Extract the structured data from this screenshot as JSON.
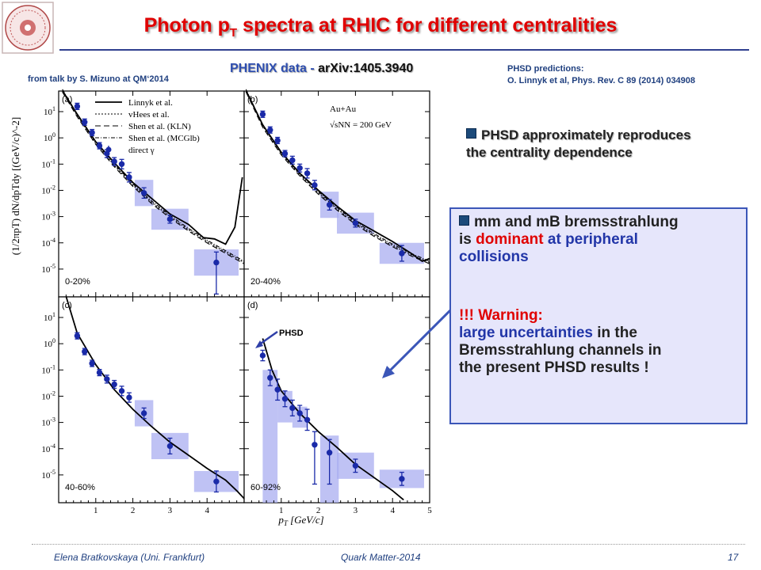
{
  "header": {
    "title_main": "Photon p",
    "title_sub": "T",
    "title_rest": " spectra at RHIC for different centralities"
  },
  "source": {
    "phenix_label": "PHENIX data - ",
    "phenix_ref": "arXiv:1405.3940",
    "from_talk": "from talk by S. Mizuno at QM‘2014",
    "phsd_pred_line1": "PHSD predictions:",
    "phsd_pred_line2": "O. Linnyk et al, Phys. Rev. C 89 (2014) 034908"
  },
  "bullet1": {
    "text_line1": "PHSD approximately reproduces",
    "text_line2": "the centrality dependence"
  },
  "infobox": {
    "l1": "mm and mB bremsstrahlung",
    "l2a": "is ",
    "l2b": "dominant",
    "l2c": " at peripheral",
    "l3": "collisions",
    "w1": "!!! Warning:",
    "w2a": "large uncertainties",
    "w2b": " in the",
    "w3": "Bremsstrahlung channels in",
    "w4": "the present PHSD results !"
  },
  "footer": {
    "author": "Elena Bratkovskaya  (Uni. Frankfurt)",
    "conference": "Quark Matter-2014",
    "page": "17"
  },
  "chart_data": {
    "type": "scatter",
    "xlabel": "pT [GeV/c]",
    "ylabel": "(1/2πpT) dN/dpTdy [(GeV/c)^-2]",
    "xlim": [
      0,
      5
    ],
    "ylim_exponent": [
      -6,
      2
    ],
    "x_ticks": [
      "1",
      "2",
      "3",
      "4",
      "5"
    ],
    "y_ticks": [
      "10^1",
      "10^0",
      "10^-1",
      "10^-2",
      "10^-3",
      "10^-4",
      "10^-5"
    ],
    "legend": [
      "Linnyk et al.",
      "vHees et al.",
      "Shen et al. (KLN)",
      "Shen et al. (MCGlb)",
      "direct γ"
    ],
    "collision_label": "Au+Au",
    "energy_label": "√sNN = 200 GeV",
    "phsd_arrow_label": "PHSD",
    "panels": [
      {
        "letter": "(a)",
        "centrality": "0-20%",
        "points": [
          [
            0.5,
            1.2
          ],
          [
            0.7,
            0.6
          ],
          [
            0.9,
            0.2
          ],
          [
            1.1,
            -0.3
          ],
          [
            1.3,
            -0.6
          ],
          [
            1.5,
            -0.9
          ],
          [
            1.7,
            -1.0
          ],
          [
            1.9,
            -1.5
          ],
          [
            2.3,
            -2.1
          ],
          [
            3.0,
            -3.1
          ],
          [
            4.25,
            -4.75
          ]
        ],
        "err_low": [
          0.12,
          0.12,
          0.12,
          0.12,
          0.15,
          0.15,
          0.18,
          0.18,
          0.2,
          0.15,
          1.2
        ],
        "err_high": [
          0.12,
          0.12,
          0.12,
          0.12,
          0.15,
          0.15,
          0.18,
          0.18,
          0.2,
          0.15,
          0.4
        ],
        "syst": [
          [
            2.3,
            0.3
          ],
          [
            3.0,
            0.2
          ],
          [
            4.25,
            0.3
          ]
        ],
        "curve_phsd": [
          [
            0.1,
            1.8
          ],
          [
            0.5,
            0.9
          ],
          [
            1.0,
            -0.15
          ],
          [
            1.5,
            -0.95
          ],
          [
            2.0,
            -1.7
          ],
          [
            2.5,
            -2.3
          ],
          [
            3.0,
            -2.9
          ],
          [
            3.5,
            -3.3
          ],
          [
            3.9,
            -3.8
          ],
          [
            4.2,
            -3.85
          ],
          [
            4.5,
            -4.05
          ],
          [
            4.75,
            -3.4
          ],
          [
            4.95,
            -1.5
          ]
        ],
        "curve_model": [
          [
            0.1,
            1.8
          ],
          [
            0.5,
            0.85
          ],
          [
            1.0,
            -0.2
          ],
          [
            1.5,
            -1.05
          ],
          [
            2.0,
            -1.8
          ],
          [
            2.5,
            -2.45
          ],
          [
            3.0,
            -3.0
          ],
          [
            3.5,
            -3.5
          ],
          [
            4.0,
            -3.95
          ],
          [
            4.5,
            -4.35
          ],
          [
            5.0,
            -4.75
          ]
        ]
      },
      {
        "letter": "(b)",
        "centrality": "20-40%",
        "points": [
          [
            0.5,
            0.9
          ],
          [
            0.7,
            0.3
          ],
          [
            0.9,
            -0.1
          ],
          [
            1.1,
            -0.6
          ],
          [
            1.3,
            -0.85
          ],
          [
            1.5,
            -1.15
          ],
          [
            1.7,
            -1.35
          ],
          [
            1.9,
            -1.8
          ],
          [
            2.3,
            -2.55
          ],
          [
            3.0,
            -3.25
          ],
          [
            4.25,
            -4.4
          ]
        ],
        "err_low": [
          0.12,
          0.12,
          0.12,
          0.12,
          0.15,
          0.15,
          0.18,
          0.18,
          0.2,
          0.15,
          0.3
        ],
        "err_high": [
          0.12,
          0.12,
          0.12,
          0.12,
          0.15,
          0.15,
          0.18,
          0.18,
          0.2,
          0.15,
          0.3
        ],
        "syst": [
          [
            2.3,
            0.3
          ],
          [
            3.0,
            0.2
          ],
          [
            4.25,
            0.2
          ]
        ],
        "curve_phsd": [
          [
            0.05,
            1.8
          ],
          [
            0.5,
            0.5
          ],
          [
            1.0,
            -0.55
          ],
          [
            1.5,
            -1.35
          ],
          [
            2.0,
            -2.0
          ],
          [
            2.5,
            -2.6
          ],
          [
            3.0,
            -3.15
          ],
          [
            3.5,
            -3.55
          ],
          [
            4.0,
            -3.95
          ],
          [
            4.5,
            -4.4
          ],
          [
            4.8,
            -4.7
          ],
          [
            5.0,
            -4.6
          ]
        ],
        "curve_model": [
          [
            0.05,
            1.8
          ],
          [
            0.5,
            0.45
          ],
          [
            1.0,
            -0.6
          ],
          [
            1.5,
            -1.4
          ],
          [
            2.0,
            -2.1
          ],
          [
            2.5,
            -2.7
          ],
          [
            3.0,
            -3.25
          ],
          [
            3.5,
            -3.7
          ],
          [
            4.0,
            -4.1
          ],
          [
            4.5,
            -4.45
          ],
          [
            5.0,
            -4.75
          ]
        ]
      },
      {
        "letter": "(c)",
        "centrality": "40-60%",
        "points": [
          [
            0.5,
            0.3
          ],
          [
            0.7,
            -0.3
          ],
          [
            0.9,
            -0.75
          ],
          [
            1.1,
            -1.1
          ],
          [
            1.3,
            -1.35
          ],
          [
            1.5,
            -1.55
          ],
          [
            1.7,
            -1.8
          ],
          [
            1.9,
            -2.05
          ],
          [
            2.3,
            -2.65
          ],
          [
            3.0,
            -3.9
          ],
          [
            4.25,
            -5.25
          ]
        ],
        "err_low": [
          0.12,
          0.12,
          0.12,
          0.12,
          0.15,
          0.15,
          0.18,
          0.18,
          0.2,
          0.3,
          0.4
        ],
        "err_high": [
          0.12,
          0.12,
          0.12,
          0.12,
          0.15,
          0.15,
          0.18,
          0.18,
          0.2,
          0.3,
          0.4
        ],
        "syst": [
          [
            2.3,
            0.3
          ],
          [
            3.0,
            0.3
          ],
          [
            4.25,
            0.2
          ]
        ],
        "curve_phsd": [
          [
            0.2,
            1.8
          ],
          [
            0.5,
            0.4
          ],
          [
            1.0,
            -0.8
          ],
          [
            1.5,
            -1.75
          ],
          [
            2.0,
            -2.5
          ],
          [
            2.5,
            -3.15
          ],
          [
            3.0,
            -3.75
          ],
          [
            3.5,
            -4.25
          ],
          [
            4.0,
            -4.75
          ],
          [
            4.5,
            -5.2
          ],
          [
            4.8,
            -5.6
          ],
          [
            5.0,
            -5.9
          ]
        ]
      },
      {
        "letter": "(d)",
        "centrality": "60-92%",
        "points": [
          [
            0.5,
            -0.45
          ],
          [
            0.7,
            -1.3
          ],
          [
            0.9,
            -1.75
          ],
          [
            1.1,
            -2.1
          ],
          [
            1.3,
            -2.45
          ],
          [
            1.5,
            -2.65
          ],
          [
            1.7,
            -2.9
          ],
          [
            1.9,
            -3.85
          ],
          [
            2.3,
            -4.15
          ],
          [
            3.0,
            -4.65
          ],
          [
            4.25,
            -5.15
          ]
        ],
        "err_low": [
          0.2,
          0.3,
          0.4,
          0.3,
          0.3,
          0.3,
          0.4,
          1.5,
          1.2,
          0.25,
          0.25
        ],
        "err_high": [
          0.2,
          0.3,
          0.4,
          0.3,
          0.3,
          0.3,
          0.4,
          0.5,
          0.5,
          0.25,
          0.25
        ],
        "syst": [
          [
            0.7,
            0.0
          ],
          [
            1.1,
            0.3
          ],
          [
            1.5,
            0.3
          ],
          [
            2.3,
            0.0
          ],
          [
            3.0,
            0.3
          ],
          [
            4.25,
            0.15
          ]
        ],
        "curve_phsd": [
          [
            0.5,
            0.2
          ],
          [
            0.75,
            -1.0
          ],
          [
            1.0,
            -1.8
          ],
          [
            1.5,
            -2.65
          ],
          [
            2.0,
            -3.35
          ],
          [
            2.5,
            -3.95
          ],
          [
            3.0,
            -4.6
          ],
          [
            3.5,
            -5.1
          ],
          [
            4.0,
            -5.6
          ],
          [
            4.3,
            -5.95
          ]
        ]
      }
    ]
  }
}
